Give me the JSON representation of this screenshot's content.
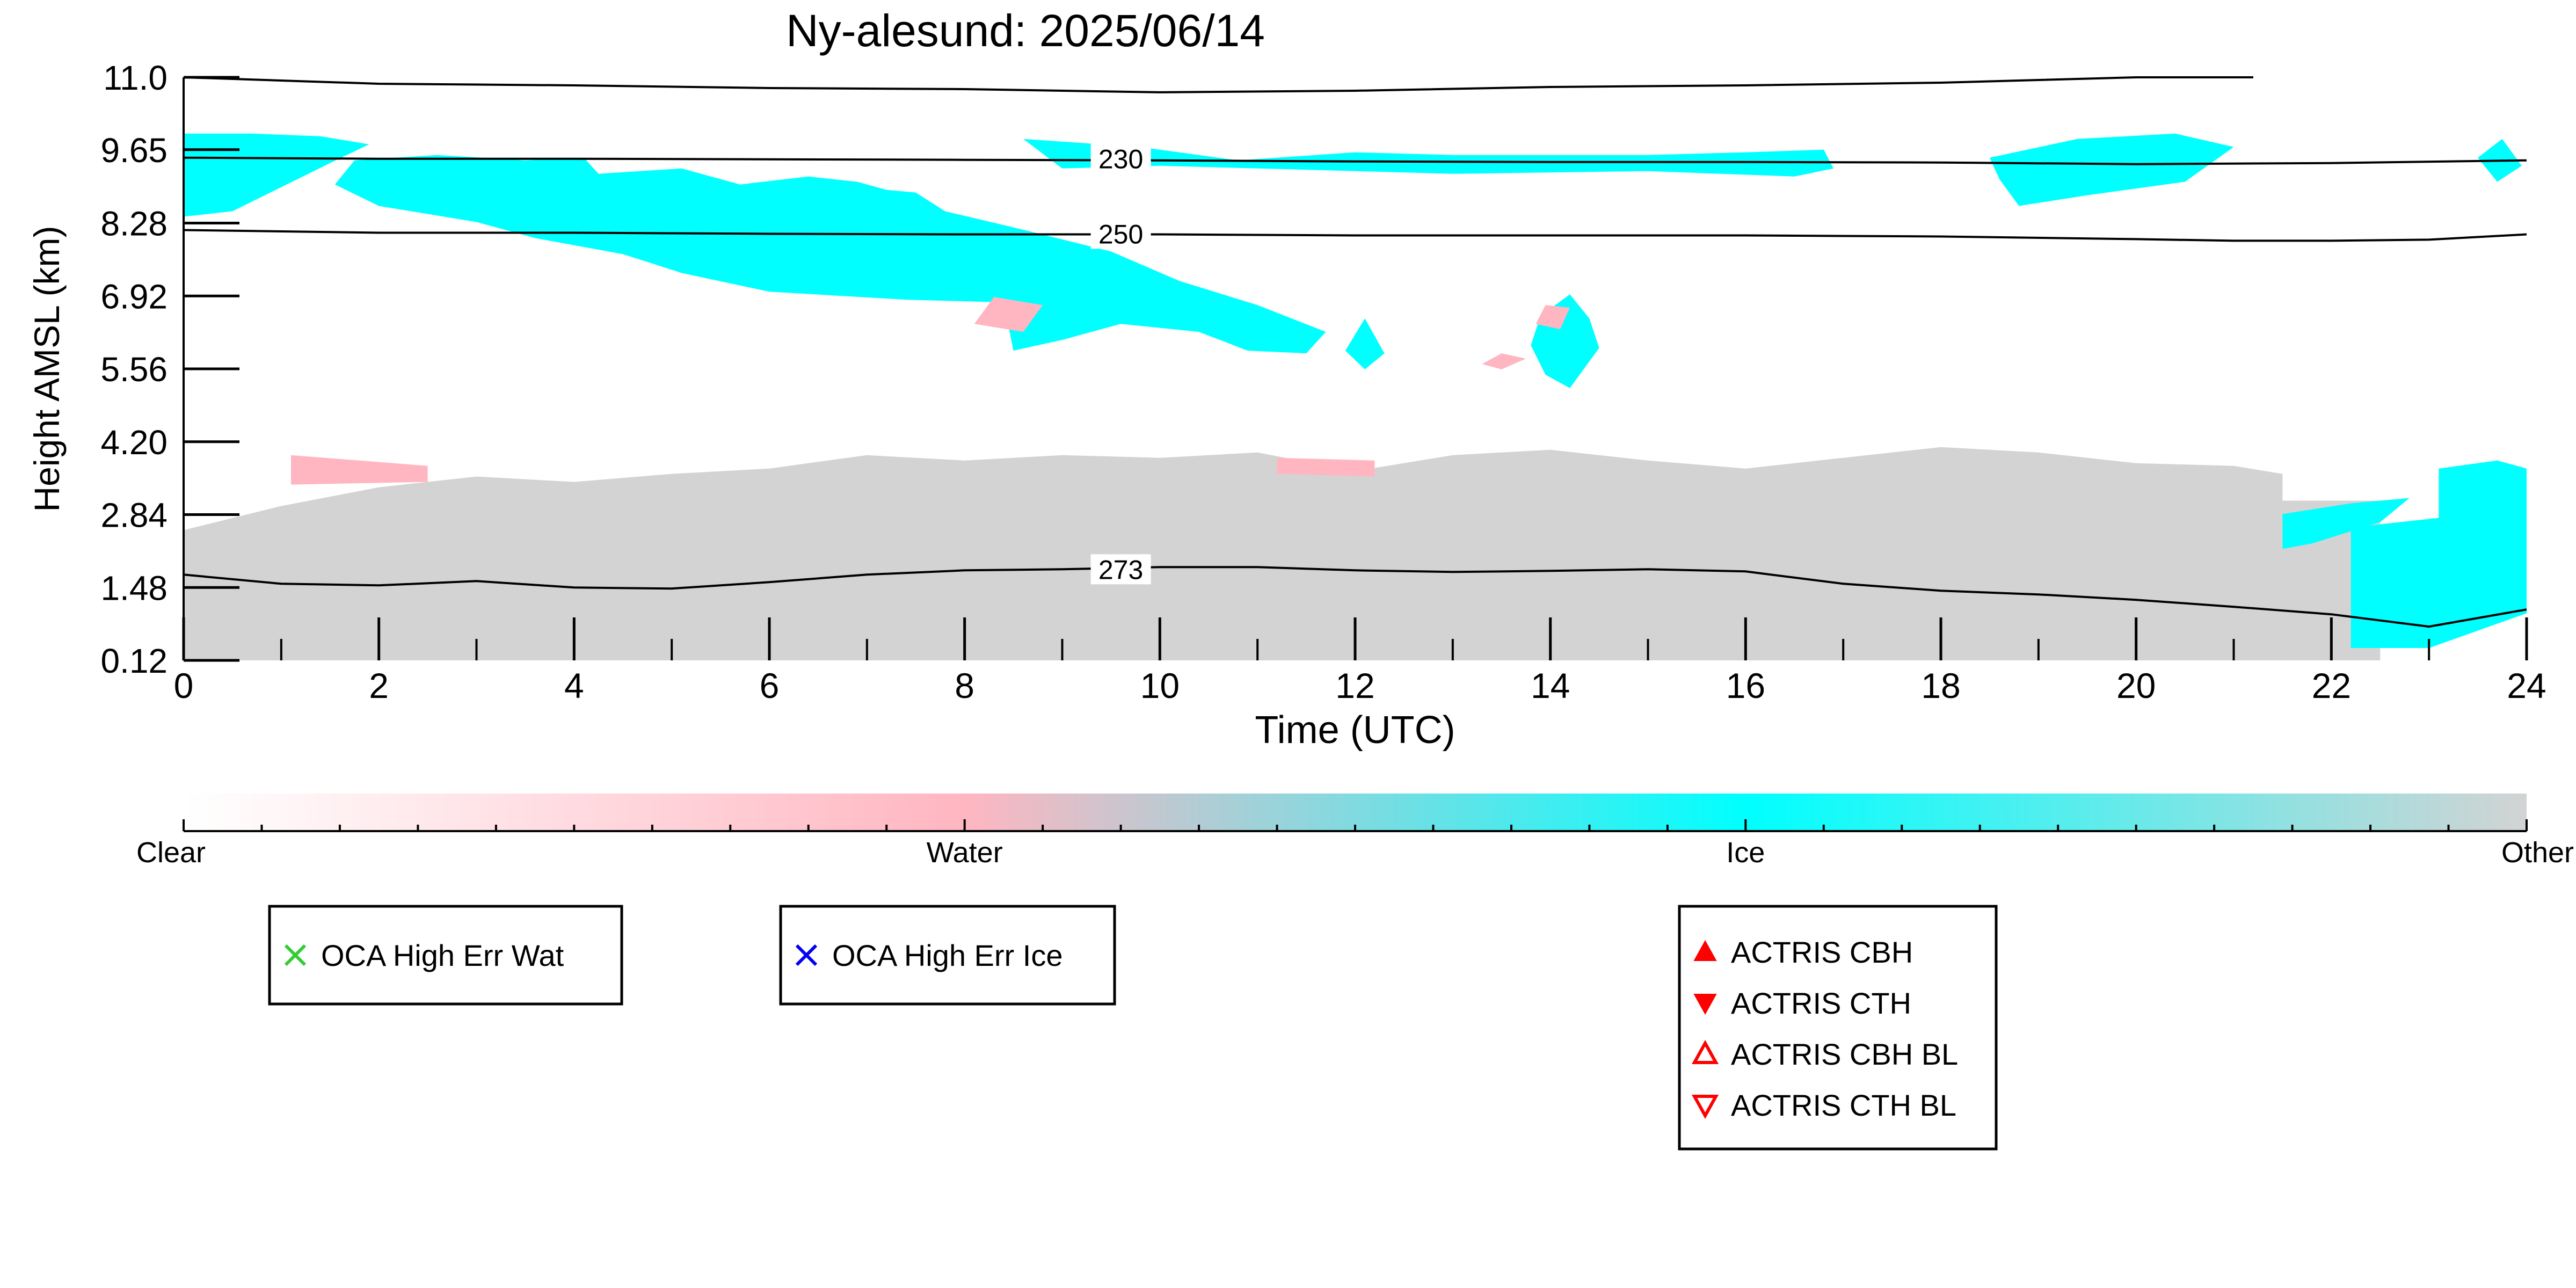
{
  "chart_data": {
    "type": "heatmap",
    "title": "Ny-alesund: 2025/06/14",
    "xlabel": "Time (UTC)",
    "ylabel": "Height AMSL (km)",
    "xlim": [
      0,
      24
    ],
    "ylim": [
      0.12,
      11.0
    ],
    "x_ticks": [
      "0",
      "2",
      "4",
      "6",
      "8",
      "10",
      "12",
      "14",
      "16",
      "18",
      "20",
      "22",
      "24"
    ],
    "y_ticks": [
      "0.12",
      "1.48",
      "2.84",
      "4.20",
      "5.56",
      "6.92",
      "8.28",
      "9.65",
      "11.0"
    ],
    "y_tick_values": [
      0.12,
      1.48,
      2.84,
      4.2,
      5.56,
      6.92,
      8.28,
      9.65,
      11.0
    ],
    "categories": [
      "Clear",
      "Water",
      "Ice",
      "Other"
    ],
    "colorbar_positions": [
      0,
      1,
      2,
      3
    ],
    "category_colors": {
      "Clear": "#ffffff",
      "Water": "#ffb6c1",
      "Ice": "#00ffff",
      "Other": "#d3d3d3"
    },
    "isotherm_color": "#000000",
    "isotherms": [
      {
        "label": "230",
        "label_x": 9.6,
        "label_y": 9.48,
        "points": [
          [
            0,
            9.5
          ],
          [
            2,
            9.48
          ],
          [
            4,
            9.48
          ],
          [
            6,
            9.47
          ],
          [
            8,
            9.46
          ],
          [
            10,
            9.45
          ],
          [
            12,
            9.43
          ],
          [
            14,
            9.42
          ],
          [
            16,
            9.42
          ],
          [
            18,
            9.41
          ],
          [
            20,
            9.38
          ],
          [
            22,
            9.4
          ],
          [
            24,
            9.45
          ]
        ]
      },
      {
        "label": "250",
        "label_x": 9.6,
        "label_y": 8.08,
        "points": [
          [
            0,
            8.15
          ],
          [
            2,
            8.1
          ],
          [
            4,
            8.1
          ],
          [
            6,
            8.08
          ],
          [
            8,
            8.07
          ],
          [
            10,
            8.07
          ],
          [
            12,
            8.05
          ],
          [
            14,
            8.05
          ],
          [
            16,
            8.05
          ],
          [
            18,
            8.03
          ],
          [
            20,
            7.98
          ],
          [
            21,
            7.95
          ],
          [
            22,
            7.95
          ],
          [
            23,
            7.97
          ],
          [
            24,
            8.07
          ]
        ]
      },
      {
        "label": "273",
        "label_x": 9.6,
        "label_y": 1.82,
        "points": [
          [
            0,
            1.72
          ],
          [
            1,
            1.55
          ],
          [
            2,
            1.52
          ],
          [
            3,
            1.6
          ],
          [
            4,
            1.48
          ],
          [
            5,
            1.46
          ],
          [
            6,
            1.58
          ],
          [
            7,
            1.72
          ],
          [
            8,
            1.8
          ],
          [
            9,
            1.82
          ],
          [
            10,
            1.86
          ],
          [
            11,
            1.86
          ],
          [
            12,
            1.8
          ],
          [
            13,
            1.77
          ],
          [
            14,
            1.79
          ],
          [
            15,
            1.82
          ],
          [
            16,
            1.78
          ],
          [
            17,
            1.55
          ],
          [
            18,
            1.42
          ],
          [
            19,
            1.35
          ],
          [
            20,
            1.25
          ],
          [
            21,
            1.12
          ],
          [
            22,
            0.98
          ],
          [
            23,
            0.75
          ],
          [
            24,
            1.07
          ]
        ]
      }
    ],
    "top_line": {
      "points": [
        [
          0,
          11.0
        ],
        [
          2,
          10.88
        ],
        [
          4,
          10.85
        ],
        [
          6,
          10.8
        ],
        [
          8,
          10.78
        ],
        [
          10,
          10.72
        ],
        [
          12,
          10.75
        ],
        [
          14,
          10.82
        ],
        [
          16,
          10.85
        ],
        [
          18,
          10.9
        ],
        [
          19,
          10.95
        ],
        [
          20,
          11.0
        ],
        [
          21.2,
          11.0
        ]
      ]
    },
    "regions": [
      {
        "category": "Other",
        "points": [
          [
            0,
            0.12
          ],
          [
            0,
            2.55
          ],
          [
            1,
            3.0
          ],
          [
            2,
            3.35
          ],
          [
            3,
            3.55
          ],
          [
            4,
            3.45
          ],
          [
            5,
            3.6
          ],
          [
            6,
            3.7
          ],
          [
            7,
            3.95
          ],
          [
            8,
            3.85
          ],
          [
            9,
            3.95
          ],
          [
            10,
            3.9
          ],
          [
            11,
            4.0
          ],
          [
            12,
            3.65
          ],
          [
            13,
            3.95
          ],
          [
            14,
            4.05
          ],
          [
            15,
            3.85
          ],
          [
            16,
            3.7
          ],
          [
            17,
            3.9
          ],
          [
            18,
            4.1
          ],
          [
            19,
            4.0
          ],
          [
            20,
            3.8
          ],
          [
            21,
            3.75
          ],
          [
            21.5,
            3.6
          ],
          [
            21.5,
            0.12
          ]
        ]
      },
      {
        "category": "Other",
        "points": [
          [
            21.5,
            0.12
          ],
          [
            21.5,
            3.1
          ],
          [
            22.5,
            3.1
          ],
          [
            22.5,
            0.12
          ]
        ]
      },
      {
        "category": "Ice",
        "points": [
          [
            22.2,
            0.35
          ],
          [
            22.2,
            2.6
          ],
          [
            23.2,
            2.8
          ],
          [
            24,
            3.25
          ],
          [
            24,
            1.0
          ],
          [
            23,
            0.35
          ]
        ]
      },
      {
        "category": "Ice",
        "points": [
          [
            21.5,
            2.2
          ],
          [
            21.5,
            2.85
          ],
          [
            22.2,
            3.05
          ],
          [
            22.8,
            3.15
          ],
          [
            22.5,
            2.7
          ],
          [
            21.8,
            2.3
          ]
        ]
      },
      {
        "category": "Ice",
        "points": [
          [
            23.1,
            1.3
          ],
          [
            23.1,
            3.7
          ],
          [
            23.7,
            3.85
          ],
          [
            24,
            3.7
          ],
          [
            24,
            1.25
          ],
          [
            23.5,
            1.2
          ]
        ]
      },
      {
        "category": "Ice",
        "points": [
          [
            0,
            8.4
          ],
          [
            0,
            9.95
          ],
          [
            0.7,
            9.95
          ],
          [
            1.4,
            9.9
          ],
          [
            1.9,
            9.75
          ],
          [
            1.5,
            9.4
          ],
          [
            1.0,
            8.95
          ],
          [
            0.5,
            8.5
          ]
        ]
      },
      {
        "category": "Ice",
        "points": [
          [
            1.55,
            9.0
          ],
          [
            1.75,
            9.45
          ],
          [
            2.6,
            9.55
          ],
          [
            3.5,
            9.45
          ],
          [
            4.1,
            9.5
          ],
          [
            4.25,
            9.2
          ],
          [
            5.1,
            9.3
          ],
          [
            5.7,
            9.0
          ],
          [
            6.4,
            9.15
          ],
          [
            6.9,
            9.05
          ],
          [
            7.2,
            8.9
          ],
          [
            7.5,
            8.85
          ],
          [
            7.8,
            8.5
          ],
          [
            8.5,
            8.2
          ],
          [
            9.5,
            7.75
          ],
          [
            10.2,
            7.2
          ],
          [
            11.0,
            6.75
          ],
          [
            11.7,
            6.25
          ],
          [
            11.5,
            5.85
          ],
          [
            10.9,
            5.9
          ],
          [
            10.4,
            6.25
          ],
          [
            9.6,
            6.4
          ],
          [
            9.0,
            6.1
          ],
          [
            8.5,
            5.9
          ],
          [
            8.4,
            6.8
          ],
          [
            7.4,
            6.85
          ],
          [
            6.0,
            7.0
          ],
          [
            5.1,
            7.35
          ],
          [
            4.5,
            7.7
          ],
          [
            3.6,
            8.0
          ],
          [
            3.0,
            8.3
          ],
          [
            2.5,
            8.45
          ],
          [
            2.0,
            8.6
          ]
        ]
      },
      {
        "category": "Ice",
        "points": [
          [
            11.9,
            5.9
          ],
          [
            12.1,
            6.5
          ],
          [
            12.3,
            5.85
          ],
          [
            12.1,
            5.55
          ]
        ]
      },
      {
        "category": "Ice",
        "points": [
          [
            13.8,
            6.0
          ],
          [
            13.9,
            6.55
          ],
          [
            14.2,
            6.95
          ],
          [
            14.4,
            6.5
          ],
          [
            14.5,
            5.95
          ],
          [
            14.2,
            5.2
          ],
          [
            13.95,
            5.45
          ]
        ]
      },
      {
        "category": "Ice",
        "points": [
          [
            8.6,
            9.85
          ],
          [
            9.8,
            9.7
          ],
          [
            10.8,
            9.45
          ],
          [
            12.0,
            9.6
          ],
          [
            13.0,
            9.55
          ],
          [
            15.0,
            9.55
          ],
          [
            16.0,
            9.6
          ],
          [
            16.8,
            9.65
          ],
          [
            16.9,
            9.3
          ],
          [
            16.5,
            9.15
          ],
          [
            15.0,
            9.25
          ],
          [
            13.0,
            9.2
          ],
          [
            11.0,
            9.3
          ],
          [
            10.0,
            9.35
          ],
          [
            9.0,
            9.3
          ]
        ]
      },
      {
        "category": "Ice",
        "points": [
          [
            18.5,
            9.5
          ],
          [
            19.4,
            9.85
          ],
          [
            20.4,
            9.95
          ],
          [
            21.0,
            9.7
          ],
          [
            20.5,
            9.05
          ],
          [
            19.5,
            8.8
          ],
          [
            18.8,
            8.6
          ],
          [
            18.6,
            9.1
          ]
        ]
      },
      {
        "category": "Ice",
        "points": [
          [
            23.5,
            9.5
          ],
          [
            23.75,
            9.85
          ],
          [
            23.95,
            9.35
          ],
          [
            23.7,
            9.05
          ]
        ]
      },
      {
        "category": "Water",
        "points": [
          [
            1.1,
            3.4
          ],
          [
            1.1,
            3.95
          ],
          [
            2.5,
            3.75
          ],
          [
            2.5,
            3.45
          ]
        ]
      },
      {
        "category": "Water",
        "points": [
          [
            11.2,
            3.6
          ],
          [
            11.2,
            3.9
          ],
          [
            12.2,
            3.85
          ],
          [
            12.2,
            3.55
          ]
        ]
      },
      {
        "category": "Water",
        "points": [
          [
            8.1,
            6.4
          ],
          [
            8.3,
            6.9
          ],
          [
            8.8,
            6.75
          ],
          [
            8.6,
            6.25
          ]
        ]
      },
      {
        "category": "Water",
        "points": [
          [
            13.85,
            6.4
          ],
          [
            13.95,
            6.75
          ],
          [
            14.2,
            6.7
          ],
          [
            14.1,
            6.3
          ]
        ]
      },
      {
        "category": "Water",
        "points": [
          [
            13.3,
            5.65
          ],
          [
            13.5,
            5.85
          ],
          [
            13.75,
            5.75
          ],
          [
            13.5,
            5.55
          ]
        ]
      }
    ],
    "legend_groups": [
      {
        "entries": [
          {
            "marker": "cross",
            "color": "#33cc33",
            "label": "OCA High Err Wat"
          }
        ]
      },
      {
        "entries": [
          {
            "marker": "cross",
            "color": "#0000ee",
            "label": "OCA High Err Ice"
          }
        ]
      },
      {
        "entries": [
          {
            "marker": "triangle-up-filled",
            "color": "#ff0000",
            "label": "ACTRIS CBH"
          },
          {
            "marker": "triangle-down-filled",
            "color": "#ff0000",
            "label": "ACTRIS CTH"
          },
          {
            "marker": "triangle-up-open",
            "color": "#ff0000",
            "label": "ACTRIS CBH BL"
          },
          {
            "marker": "triangle-down-open",
            "color": "#ff0000",
            "label": "ACTRIS CTH BL"
          }
        ]
      }
    ]
  }
}
